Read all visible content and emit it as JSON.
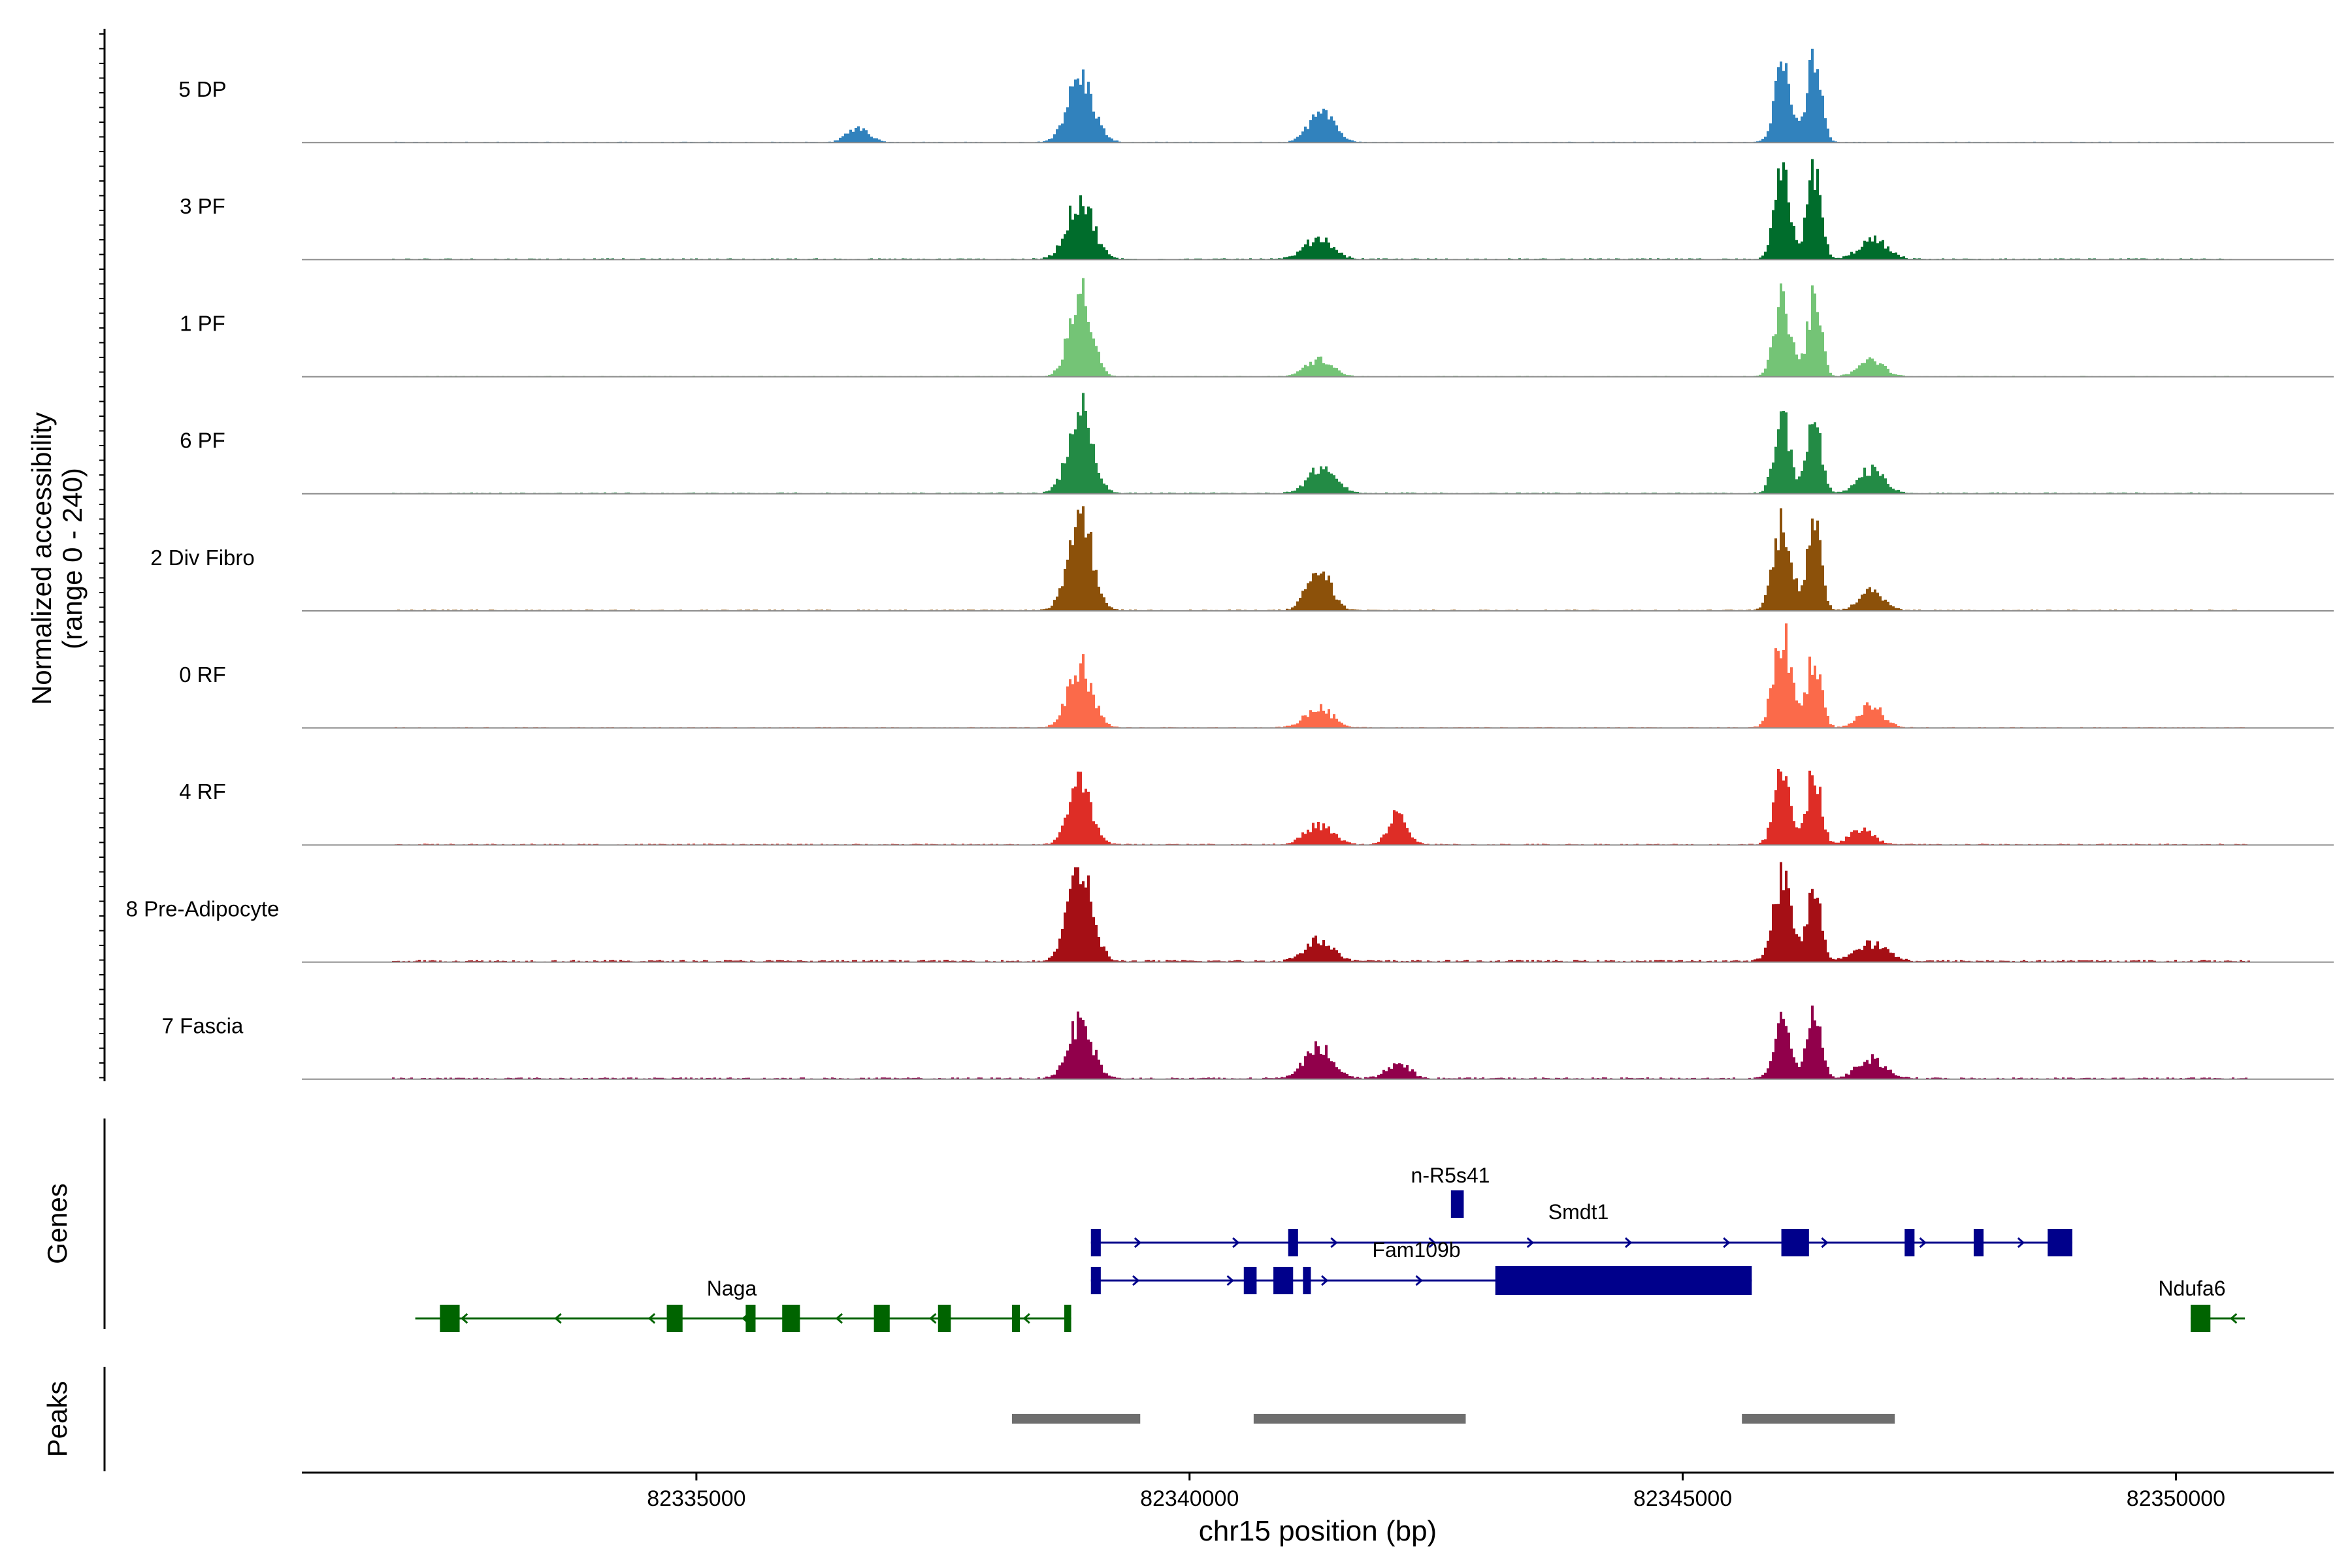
{
  "chart_data": {
    "type": "area",
    "title": "",
    "xlabel": "chr15 position (bp)",
    "ylabel": "Normalized accessibility",
    "ylabel_range": "(range 0 - 240)",
    "ylim": [
      0,
      240
    ],
    "xlim": [
      82331000,
      82351600
    ],
    "x_ticks": [
      82335000,
      82340000,
      82345000,
      82350000
    ],
    "x_tick_labels": [
      "82335000",
      "82340000",
      "82345000",
      "82350000"
    ],
    "tracks": [
      {
        "name": "5 DP",
        "color": "#3182BD",
        "peaks": [
          [
            82336630,
            35,
            110
          ],
          [
            82338880,
            150,
            130
          ],
          [
            82341330,
            85,
            120
          ],
          [
            82346000,
            190,
            80
          ],
          [
            82346320,
            200,
            70
          ]
        ],
        "baseline": 2
      },
      {
        "name": "3 PF",
        "color": "#006D2C",
        "peaks": [
          [
            82338880,
            140,
            130
          ],
          [
            82341300,
            50,
            140
          ],
          [
            82346000,
            200,
            80
          ],
          [
            82346320,
            205,
            70
          ],
          [
            82346920,
            45,
            140
          ]
        ],
        "baseline": 3
      },
      {
        "name": "1 PF",
        "color": "#74C476",
        "peaks": [
          [
            82338880,
            200,
            110
          ],
          [
            82341300,
            40,
            130
          ],
          [
            82346000,
            180,
            80
          ],
          [
            82346320,
            180,
            70
          ],
          [
            82346900,
            40,
            120
          ]
        ],
        "baseline": 2
      },
      {
        "name": "6 PF",
        "color": "#238B45",
        "peaks": [
          [
            82338880,
            195,
            120
          ],
          [
            82341330,
            60,
            140
          ],
          [
            82346000,
            180,
            80
          ],
          [
            82346320,
            175,
            70
          ],
          [
            82346900,
            55,
            130
          ]
        ],
        "baseline": 3
      },
      {
        "name": "2 Div Fibro",
        "color": "#8C510A",
        "peaks": [
          [
            82338880,
            230,
            120
          ],
          [
            82341300,
            95,
            120
          ],
          [
            82346000,
            210,
            90
          ],
          [
            82346320,
            195,
            70
          ],
          [
            82346900,
            50,
            120
          ]
        ],
        "baseline": 3
      },
      {
        "name": "0 RF",
        "color": "#FB6A4A",
        "peaks": [
          [
            82338880,
            145,
            120
          ],
          [
            82341300,
            45,
            140
          ],
          [
            82346000,
            215,
            90
          ],
          [
            82346320,
            170,
            70
          ],
          [
            82346900,
            50,
            120
          ]
        ],
        "baseline": 2
      },
      {
        "name": "4 RF",
        "color": "#DE2D26",
        "peaks": [
          [
            82338880,
            155,
            110
          ],
          [
            82341300,
            45,
            140
          ],
          [
            82342100,
            75,
            90
          ],
          [
            82346000,
            195,
            80
          ],
          [
            82346320,
            175,
            70
          ],
          [
            82346800,
            35,
            120
          ]
        ],
        "baseline": 3
      },
      {
        "name": "8 Pre-Adipocyte",
        "color": "#A50F15",
        "peaks": [
          [
            82338880,
            215,
            120
          ],
          [
            82341300,
            50,
            140
          ],
          [
            82346000,
            190,
            90
          ],
          [
            82346320,
            165,
            70
          ],
          [
            82346900,
            40,
            160
          ]
        ],
        "baseline": 5
      },
      {
        "name": "7 Fascia",
        "color": "#91004B",
        "peaks": [
          [
            82338880,
            135,
            120
          ],
          [
            82341300,
            75,
            140
          ],
          [
            82342100,
            35,
            120
          ],
          [
            82346000,
            155,
            80
          ],
          [
            82346320,
            165,
            70
          ],
          [
            82346900,
            45,
            140
          ]
        ],
        "baseline": 4
      }
    ],
    "genes_label": "Genes",
    "genes": [
      {
        "name": "n-R5s41",
        "strand": "+",
        "color": "#00008B",
        "start": 82342650,
        "end": 82342780,
        "row": 0,
        "exons": [
          [
            82342650,
            82342780
          ]
        ]
      },
      {
        "name": "Smdt1",
        "strand": "+",
        "color": "#00008B",
        "start": 82339000,
        "end": 82348950,
        "row": 1,
        "exons": [
          [
            82339000,
            82339100
          ],
          [
            82341000,
            82341100
          ],
          [
            82346000,
            82346280
          ],
          [
            82347250,
            82347350
          ],
          [
            82347950,
            82348050
          ],
          [
            82348700,
            82348950
          ]
        ]
      },
      {
        "name": "Fam109b",
        "strand": "+",
        "color": "#00008B",
        "start": 82339000,
        "end": 82345700,
        "row": 2,
        "exons": [
          [
            82339000,
            82339100
          ],
          [
            82340550,
            82340680
          ],
          [
            82340850,
            82341050
          ],
          [
            82341150,
            82341230
          ],
          [
            82343100,
            82345700
          ]
        ]
      },
      {
        "name": "Naga",
        "strand": "-",
        "color": "#006400",
        "start": 82332150,
        "end": 82338800,
        "row": 3,
        "exons": [
          [
            82332400,
            82332600
          ],
          [
            82334700,
            82334860
          ],
          [
            82335500,
            82335600
          ],
          [
            82335870,
            82336050
          ],
          [
            82336800,
            82336960
          ],
          [
            82337450,
            82337580
          ],
          [
            82338200,
            82338280
          ],
          [
            82338730,
            82338800
          ]
        ]
      },
      {
        "name": "Ndufa6",
        "strand": "-",
        "color": "#006400",
        "start": 82350150,
        "end": 82350700,
        "row": 3,
        "exons": [
          [
            82350150,
            82350350
          ]
        ]
      }
    ],
    "peaks_label": "Peaks",
    "peak_regions": [
      [
        82338200,
        82339500
      ],
      [
        82340650,
        82342800
      ],
      [
        82345600,
        82347150
      ]
    ]
  }
}
